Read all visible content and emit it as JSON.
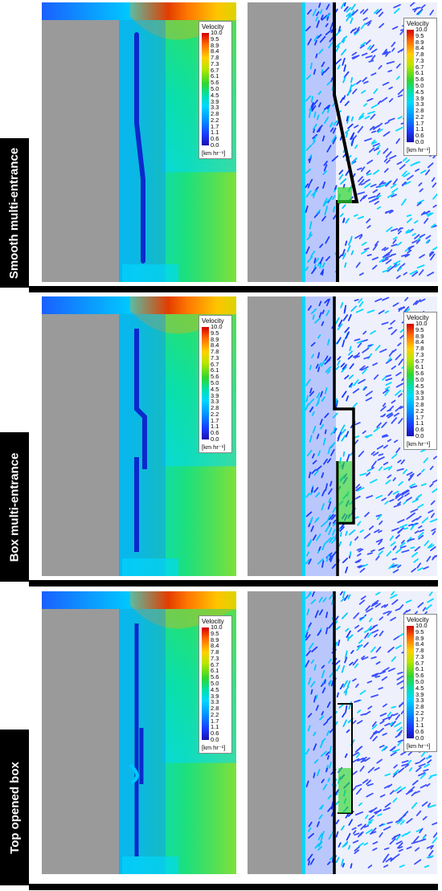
{
  "rows": [
    {
      "label": "Smooth multi-entrance",
      "variant": "smooth"
    },
    {
      "label": "Box multi-entrance",
      "variant": "box"
    },
    {
      "label": "Top opened box",
      "variant": "top"
    }
  ],
  "legend": {
    "title": "Velocity",
    "ticks": [
      "10.0",
      "9.5",
      "8.9",
      "8.4",
      "7.8",
      "7.3",
      "6.7",
      "6.1",
      "5.6",
      "5.0",
      "4.5",
      "3.9",
      "3.3",
      "2.8",
      "2.2",
      "1.7",
      "1.1",
      "0.6",
      "0.0"
    ],
    "unit": "[km hr⁻¹]"
  },
  "colors": {
    "building": "#9a9a9a",
    "wall": "#000000",
    "high": "#d40000",
    "mid": "#2fd62f",
    "low": "#1a10b0"
  }
}
